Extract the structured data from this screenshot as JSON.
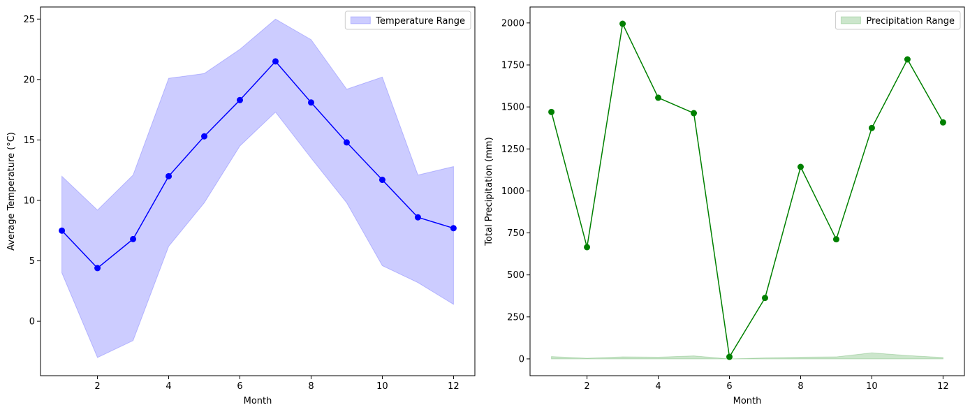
{
  "chart_data": [
    {
      "type": "line",
      "xlabel": "Month",
      "ylabel": "Average Temperature (°C)",
      "xlim": [
        0.4,
        12.6
      ],
      "ylim": [
        -4.5,
        26.0
      ],
      "xticks": [
        2,
        4,
        6,
        8,
        10,
        12
      ],
      "yticks": [
        0,
        5,
        10,
        15,
        20,
        25
      ],
      "grid": false,
      "legend_position": "top-right",
      "line_color": "#0000ff",
      "band_color": "#0000ff",
      "x": [
        1,
        2,
        3,
        4,
        5,
        6,
        7,
        8,
        9,
        10,
        11,
        12
      ],
      "series": [
        {
          "values": [
            7.5,
            4.4,
            6.8,
            12.0,
            15.3,
            18.3,
            21.5,
            18.1,
            14.8,
            11.7,
            8.6,
            7.7
          ]
        }
      ],
      "range": {
        "name": "Temperature Range",
        "lower": [
          4.0,
          -3.0,
          -1.6,
          6.2,
          9.8,
          14.5,
          17.3,
          13.5,
          9.8,
          4.6,
          3.2,
          1.4
        ],
        "upper": [
          12.0,
          9.2,
          12.1,
          20.1,
          20.5,
          22.5,
          25.0,
          23.3,
          19.2,
          20.2,
          12.1,
          12.8
        ]
      }
    },
    {
      "type": "line",
      "xlabel": "Month",
      "ylabel": "Total Precipitation (mm)",
      "xlim": [
        0.4,
        12.6
      ],
      "ylim": [
        -100,
        2095
      ],
      "xticks": [
        2,
        4,
        6,
        8,
        10,
        12
      ],
      "yticks": [
        0,
        250,
        500,
        750,
        1000,
        1250,
        1500,
        1750,
        2000
      ],
      "grid": false,
      "legend_position": "top-right",
      "line_color": "#008000",
      "band_color": "#008000",
      "x": [
        1,
        2,
        3,
        4,
        5,
        6,
        7,
        8,
        9,
        10,
        11,
        12
      ],
      "series": [
        {
          "values": [
            1470,
            665,
            1995,
            1555,
            1463,
            12,
            363,
            1143,
            712,
            1375,
            1783,
            1408
          ]
        }
      ],
      "range": {
        "name": "Precipitation Range",
        "lower": [
          0,
          0,
          0,
          0,
          0,
          0,
          0,
          0,
          0,
          0,
          0,
          0
        ],
        "upper": [
          14,
          4,
          12,
          10,
          18,
          0,
          6,
          10,
          12,
          36,
          20,
          8
        ]
      }
    }
  ]
}
